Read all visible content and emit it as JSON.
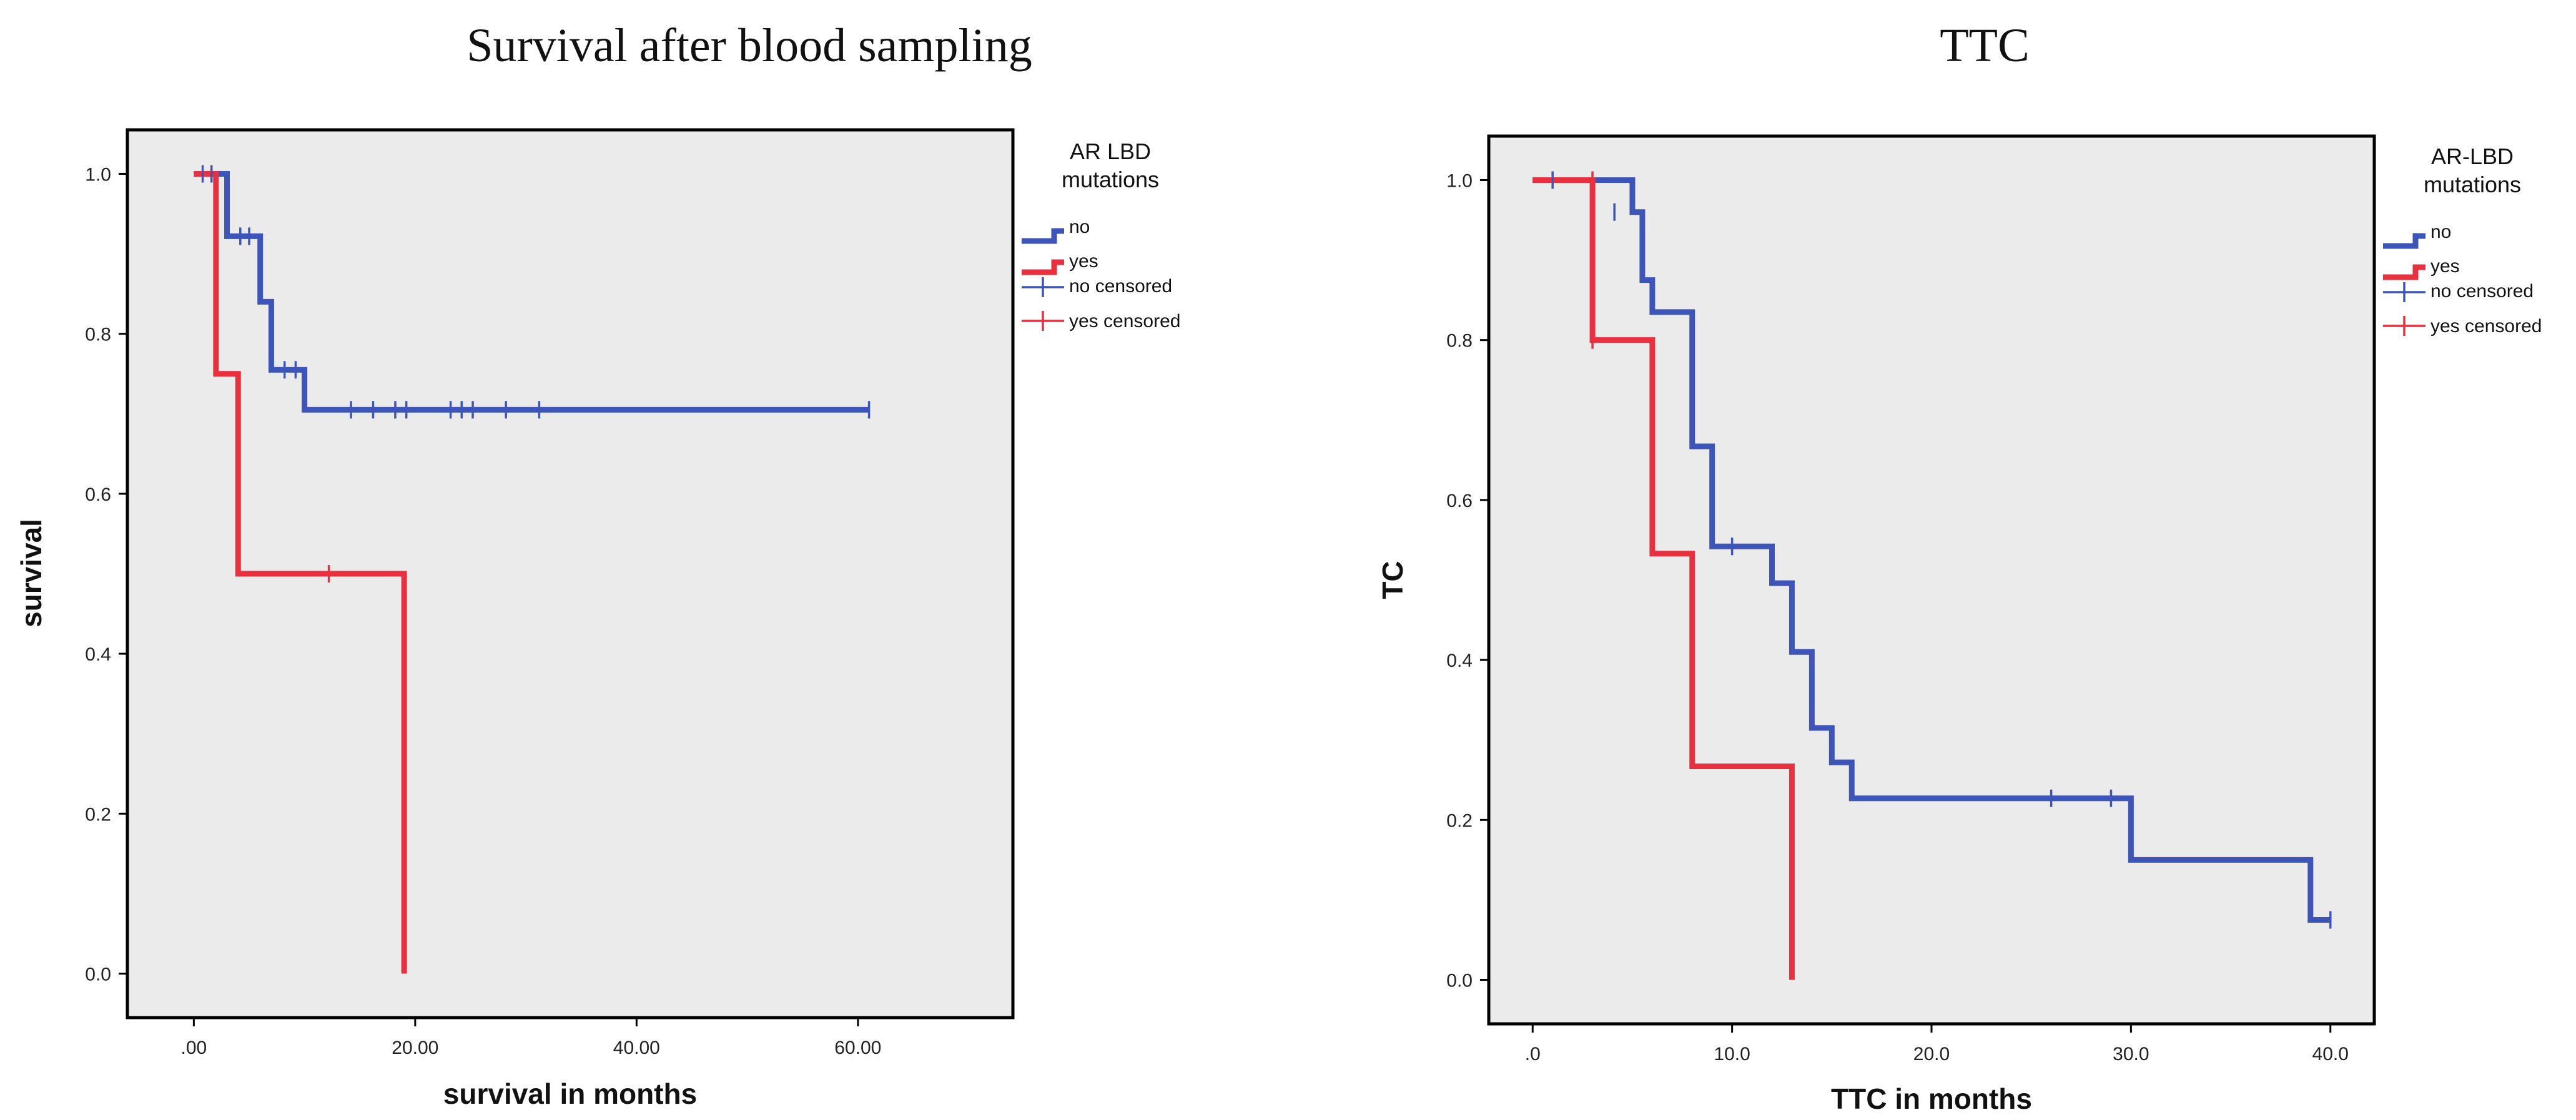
{
  "colors": {
    "no": "#3d55b8",
    "yes": "#e8303f",
    "plot_bg": "#ebebeb",
    "frame": "#000000"
  },
  "chart_data": [
    {
      "type": "line",
      "subtype": "kaplan-meier",
      "title": "Survival after blood sampling",
      "xlabel": "survival in months",
      "ylabel": "survival",
      "xlim": [
        -6,
        74
      ],
      "ylim": [
        -0.055,
        1.055
      ],
      "x_ticks": [
        0,
        20,
        40,
        60
      ],
      "x_tick_labels": [
        ".00",
        "20.00",
        "40.00",
        "60.00"
      ],
      "y_ticks": [
        0,
        0.2,
        0.4,
        0.6,
        0.8,
        1.0
      ],
      "y_tick_labels": [
        "0.0",
        "0.2",
        "0.4",
        "0.6",
        "0.8",
        "1.0"
      ],
      "grid": false,
      "legend": {
        "title_lines": [
          "AR LBD",
          "mutations"
        ],
        "placement": "right",
        "entries": [
          {
            "label": "no",
            "kind": "line",
            "series": "no"
          },
          {
            "label": "yes",
            "kind": "line",
            "series": "yes"
          },
          {
            "label": "no censored",
            "kind": "censor",
            "series": "no"
          },
          {
            "label": "yes censored",
            "kind": "censor",
            "series": "yes"
          }
        ]
      },
      "series": [
        {
          "name": "no",
          "steps": [
            [
              0,
              1.0
            ],
            [
              3,
              0.922
            ],
            [
              6,
              0.84
            ],
            [
              7,
              0.755
            ],
            [
              10,
              0.705
            ],
            [
              61,
              0.705
            ]
          ],
          "censored": [
            [
              0.8,
              1.0
            ],
            [
              1.6,
              1.0
            ],
            [
              4.2,
              0.922
            ],
            [
              5.0,
              0.922
            ],
            [
              8.2,
              0.755
            ],
            [
              9.2,
              0.755
            ],
            [
              14.2,
              0.705
            ],
            [
              16.2,
              0.705
            ],
            [
              18.2,
              0.705
            ],
            [
              19.2,
              0.705
            ],
            [
              23.2,
              0.705
            ],
            [
              24.2,
              0.705
            ],
            [
              25.2,
              0.705
            ],
            [
              28.2,
              0.705
            ],
            [
              31.2,
              0.705
            ],
            [
              61,
              0.705
            ]
          ]
        },
        {
          "name": "yes",
          "steps": [
            [
              0,
              1.0
            ],
            [
              2,
              0.75
            ],
            [
              4,
              0.5
            ],
            [
              19,
              0.0
            ]
          ],
          "censored": [
            [
              12.2,
              0.5
            ]
          ]
        }
      ]
    },
    {
      "type": "line",
      "subtype": "kaplan-meier",
      "title": "TTC",
      "xlabel": "TTC in months",
      "ylabel": "TC",
      "xlim": [
        -2.2,
        42.2
      ],
      "ylim": [
        -0.055,
        1.055
      ],
      "x_ticks": [
        0,
        10,
        20,
        30,
        40
      ],
      "x_tick_labels": [
        ".0",
        "10.0",
        "20.0",
        "30.0",
        "40.0"
      ],
      "y_ticks": [
        0,
        0.2,
        0.4,
        0.6,
        0.8,
        1.0
      ],
      "y_tick_labels": [
        "0.0",
        "0.2",
        "0.4",
        "0.6",
        "0.8",
        "1.0"
      ],
      "grid": false,
      "legend": {
        "title_lines": [
          "AR-LBD",
          "mutations"
        ],
        "placement": "right",
        "entries": [
          {
            "label": "no",
            "kind": "line",
            "series": "no"
          },
          {
            "label": "yes",
            "kind": "line",
            "series": "yes"
          },
          {
            "label": "no censored",
            "kind": "censor",
            "series": "no"
          },
          {
            "label": "yes censored",
            "kind": "censor",
            "series": "yes"
          }
        ]
      },
      "series": [
        {
          "name": "no",
          "steps": [
            [
              0,
              1.0
            ],
            [
              5,
              0.96
            ],
            [
              5.5,
              0.875
            ],
            [
              6,
              0.835
            ],
            [
              8,
              0.667
            ],
            [
              9,
              0.542
            ],
            [
              12,
              0.496
            ],
            [
              13,
              0.41
            ],
            [
              14,
              0.315
            ],
            [
              15,
              0.272
            ],
            [
              16,
              0.227
            ],
            [
              30,
              0.15
            ],
            [
              39,
              0.075
            ],
            [
              40,
              0.075
            ]
          ],
          "censored": [
            [
              1,
              1.0
            ],
            [
              4.1,
              0.96
            ],
            [
              10,
              0.542
            ],
            [
              26,
              0.227
            ],
            [
              29,
              0.227
            ],
            [
              40,
              0.075
            ]
          ]
        },
        {
          "name": "yes",
          "steps": [
            [
              0,
              1.0
            ],
            [
              3,
              0.8
            ],
            [
              6,
              0.533
            ],
            [
              8,
              0.267
            ],
            [
              13,
              0.0
            ]
          ],
          "censored": [
            [
              3,
              1.0
            ],
            [
              3,
              0.8
            ]
          ]
        }
      ]
    }
  ]
}
